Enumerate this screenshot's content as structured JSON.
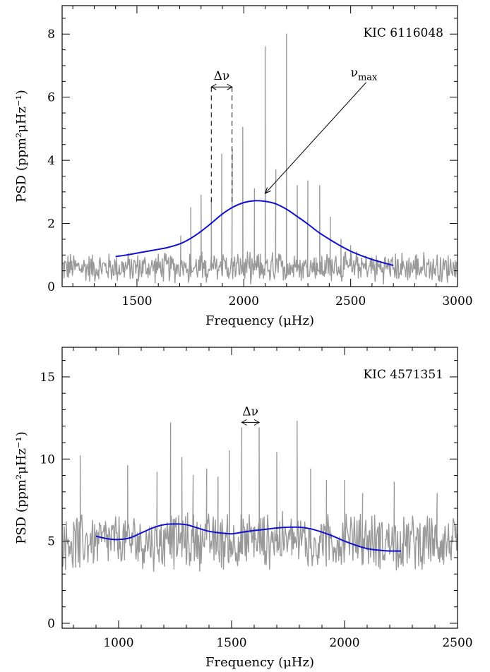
{
  "chart_data": [
    {
      "type": "line",
      "panel": "top",
      "annotation_title": "KIC 6116048",
      "xlabel": "Frequency (μHz)",
      "ylabel": "PSD (ppm²μHz⁻¹)",
      "xlim": [
        1150,
        3000
      ],
      "ylim": [
        0,
        8.9
      ],
      "xticks": [
        1500,
        2000,
        2500,
        3000
      ],
      "yticks": [
        0,
        2,
        4,
        6,
        8
      ],
      "x_minor_step": 100,
      "y_minor_step": 0.5,
      "grid": false,
      "colors": {
        "spectrum": "#999999",
        "fit": "#1010d0"
      },
      "annotations": {
        "delta_nu_label": "Δν",
        "delta_nu_range": [
          1848,
          1945
        ],
        "delta_nu_y": 6.1,
        "numax_label": "ν",
        "numax_sub": "max",
        "numax_value": 2100,
        "numax_point_y": 2.95,
        "numax_label_pos": [
          2500,
          6.2
        ]
      },
      "series": [
        {
          "kind": "fit",
          "x": [
            1400,
            1450,
            1500,
            1550,
            1600,
            1650,
            1700,
            1750,
            1800,
            1850,
            1900,
            1950,
            2000,
            2050,
            2100,
            2150,
            2200,
            2250,
            2300,
            2350,
            2400,
            2450,
            2500,
            2550,
            2600,
            2650,
            2700
          ],
          "y": [
            0.95,
            1.0,
            1.06,
            1.12,
            1.18,
            1.25,
            1.35,
            1.52,
            1.75,
            2.02,
            2.3,
            2.52,
            2.66,
            2.72,
            2.7,
            2.62,
            2.45,
            2.22,
            1.98,
            1.72,
            1.5,
            1.3,
            1.12,
            0.98,
            0.86,
            0.76,
            0.67
          ]
        },
        {
          "kind": "spectrum",
          "noise_x_range": [
            1150,
            3000
          ],
          "noise_step": 3,
          "noise_base": 0.6,
          "noise_amp": 0.45,
          "peaks": [
            {
              "x": 1705,
              "y": 1.6
            },
            {
              "x": 1752,
              "y": 2.5
            },
            {
              "x": 1800,
              "y": 2.9
            },
            {
              "x": 1848,
              "y": 2.75
            },
            {
              "x": 1897,
              "y": 4.2
            },
            {
              "x": 1946,
              "y": 4.35
            },
            {
              "x": 1995,
              "y": 5.05
            },
            {
              "x": 2050,
              "y": 3.1
            },
            {
              "x": 2100,
              "y": 7.6
            },
            {
              "x": 2150,
              "y": 3.7
            },
            {
              "x": 2200,
              "y": 8.0
            },
            {
              "x": 2250,
              "y": 3.2
            },
            {
              "x": 2300,
              "y": 3.35
            },
            {
              "x": 2355,
              "y": 3.2
            },
            {
              "x": 2405,
              "y": 2.2
            },
            {
              "x": 2455,
              "y": 1.5
            },
            {
              "x": 2500,
              "y": 1.3
            }
          ]
        }
      ]
    },
    {
      "type": "line",
      "panel": "bottom",
      "annotation_title": "KIC 4571351",
      "xlabel": "Frequency (μHz)",
      "ylabel": "PSD (ppm²μHz⁻¹)",
      "xlim": [
        750,
        2500
      ],
      "ylim": [
        -0.3,
        16.8
      ],
      "xticks": [
        1000,
        1500,
        2000,
        2500
      ],
      "yticks": [
        0,
        5,
        10,
        15
      ],
      "x_minor_step": 100,
      "y_minor_step": 1,
      "grid": false,
      "colors": {
        "spectrum": "#999999",
        "fit": "#1010d0"
      },
      "annotations": {
        "delta_nu_label": "Δν",
        "delta_nu_range": [
          1545,
          1622
        ],
        "delta_nu_y": 11.8
      },
      "series": [
        {
          "kind": "fit",
          "x": [
            900,
            950,
            1000,
            1050,
            1100,
            1150,
            1200,
            1250,
            1300,
            1350,
            1400,
            1450,
            1500,
            1550,
            1600,
            1650,
            1700,
            1750,
            1800,
            1850,
            1900,
            1950,
            2000,
            2050,
            2100,
            2150,
            2200,
            2250
          ],
          "y": [
            5.3,
            5.15,
            5.1,
            5.2,
            5.5,
            5.8,
            6.0,
            6.05,
            6.0,
            5.8,
            5.6,
            5.5,
            5.45,
            5.55,
            5.65,
            5.72,
            5.8,
            5.85,
            5.85,
            5.75,
            5.55,
            5.3,
            5.0,
            4.75,
            4.55,
            4.45,
            4.4,
            4.4
          ]
        },
        {
          "kind": "spectrum",
          "noise_x_range": [
            750,
            2500
          ],
          "noise_step": 3,
          "noise_base": 5.0,
          "noise_amp": 1.6,
          "peaks": [
            {
              "x": 830,
              "y": 10.2
            },
            {
              "x": 1040,
              "y": 9.6
            },
            {
              "x": 1170,
              "y": 9.2
            },
            {
              "x": 1230,
              "y": 12.2
            },
            {
              "x": 1280,
              "y": 10.1
            },
            {
              "x": 1330,
              "y": 9.0
            },
            {
              "x": 1390,
              "y": 9.4
            },
            {
              "x": 1440,
              "y": 8.9
            },
            {
              "x": 1490,
              "y": 10.5
            },
            {
              "x": 1545,
              "y": 11.9
            },
            {
              "x": 1622,
              "y": 11.9
            },
            {
              "x": 1700,
              "y": 10.4
            },
            {
              "x": 1790,
              "y": 12.3
            },
            {
              "x": 1850,
              "y": 9.4
            },
            {
              "x": 1920,
              "y": 8.7
            },
            {
              "x": 2000,
              "y": 8.7
            },
            {
              "x": 2080,
              "y": 7.9
            },
            {
              "x": 2220,
              "y": 8.6
            },
            {
              "x": 2410,
              "y": 7.9
            }
          ]
        }
      ]
    }
  ]
}
